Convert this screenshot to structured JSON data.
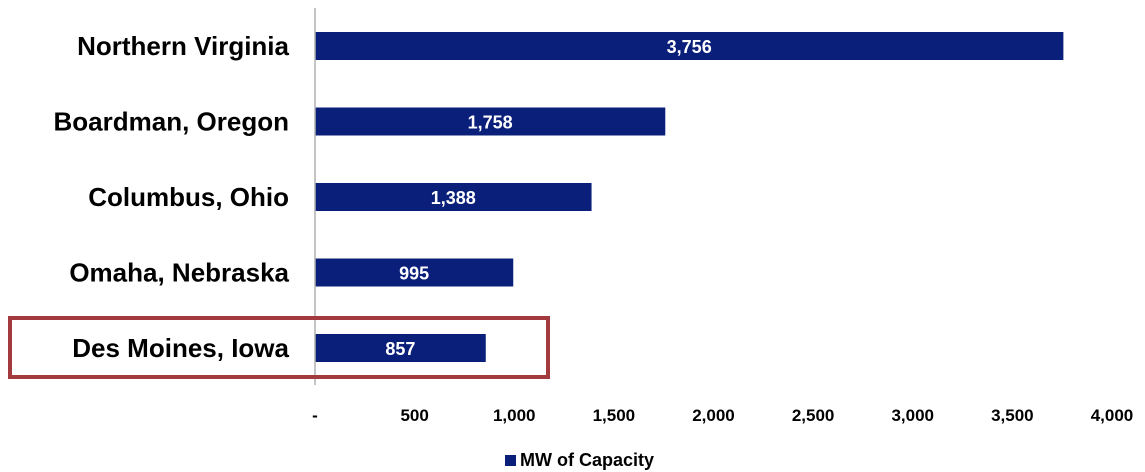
{
  "chart_data": {
    "type": "bar",
    "orientation": "horizontal",
    "categories": [
      "Northern Virginia",
      "Boardman, Oregon",
      "Columbus, Ohio",
      "Omaha, Nebraska",
      "Des Moines, Iowa"
    ],
    "series": [
      {
        "name": "MW of Capacity",
        "values": [
          3756,
          1758,
          1388,
          995,
          857
        ],
        "data_labels": [
          "3,756",
          "1,758",
          "1,388",
          "995",
          "857"
        ],
        "color": "#0a1f7a"
      }
    ],
    "xlim": [
      0,
      4000
    ],
    "x_ticks": [
      0,
      500,
      1000,
      1500,
      2000,
      2500,
      3000,
      3500,
      4000
    ],
    "x_tick_labels": [
      "-",
      "500",
      "1,000",
      "1,500",
      "2,000",
      "2,500",
      "3,000",
      "3,500",
      "4,000"
    ],
    "grid": false,
    "legend": {
      "position": "bottom",
      "label": "MW of Capacity"
    },
    "highlight": {
      "category": "Des Moines, Iowa",
      "color": "#a33a3e"
    },
    "axis_line_color": "#b0b0b0"
  }
}
